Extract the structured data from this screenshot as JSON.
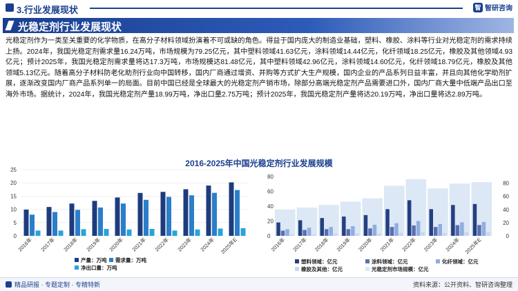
{
  "header": {
    "section_title": "3.行业发展现状",
    "logo_text": "智研咨询"
  },
  "banner": {
    "title": "光稳定剂行业发展现状"
  },
  "body_text": "光稳定剂作为一类至关重要的化学物质，在高分子材料领域扮演着不可或缺的角色。得益于国内庞大的制造业基础，塑料、橡胶、涂料等行业对光稳定剂的需求持续上扬。2024年，我国光稳定剂需求量16.24万吨，市场规模为79.25亿元，其中塑料领域41.63亿元，涂料领域14.44亿元，化纤领域18.25亿元，橡胶及其他领域4.93亿元；预计2025年，我国光稳定剂需求量将达17.3万吨，市场规模达81.48亿元，其中塑料领域42.96亿元，涂料领域14.60亿元，化纤领域18.79亿元，橡胶及其他领域5.13亿元。随着高分子材料防老化助剂行业向中国转移，国内厂商通过增资、并购等方式扩大生产规模，国内企业的产品系列日益丰富，并且向其他化学助剂扩展，逐渐改变国内厂商产品系列单一的局面。目前中国已经是全球最大的光稳定剂产销市场，除部分高端光稳定剂产品需要进口外，国内厂商大量中低端产品出口至海外市场。据统计，2024年，我国光稳定剂产量18.99万吨，净出口量2.75万吨；预计2025年，我国光稳定剂产量将达20.19万吨，净出口量将达2.89万吨。",
  "chart_title": "2016-2025年中国光稳定剂行业发展规模",
  "footer": {
    "left": "精品研报 · 专题定制 · 专精特新",
    "right": "资料来源：公开资料、智研咨询整理"
  },
  "chart_data": [
    {
      "type": "bar",
      "title": "",
      "categories": [
        "2016年",
        "2017年",
        "2018年",
        "2019年",
        "2020年",
        "2021年",
        "2022年",
        "2023年",
        "2024年",
        "2025年E"
      ],
      "ylim": [
        0,
        25
      ],
      "yticks": [
        0,
        5,
        10,
        15,
        20,
        25
      ],
      "series": [
        {
          "name": "产量：万吨",
          "color": "#1e3c7c",
          "values": [
            9.9,
            10.9,
            12.2,
            13.2,
            14.5,
            16.2,
            16.6,
            17.6,
            18.99,
            20.19
          ]
        },
        {
          "name": "需求量：万吨",
          "color": "#2b7ec9",
          "values": [
            8.0,
            9.0,
            9.8,
            10.7,
            12.2,
            13.6,
            14.7,
            15.3,
            16.24,
            17.3
          ]
        },
        {
          "name": "净出口量：万吨",
          "color": "#29a3d8",
          "values": [
            2.0,
            2.0,
            2.5,
            2.6,
            2.4,
            2.6,
            2.0,
            2.4,
            2.75,
            2.89
          ]
        }
      ],
      "legend_position": "bottom"
    },
    {
      "type": "bar",
      "title": "",
      "categories": [
        "2016年",
        "2017年",
        "2018年",
        "2019年",
        "2020年",
        "2021年",
        "2022年",
        "2023年",
        "2024年",
        "2025年E"
      ],
      "ylim": [
        0,
        80
      ],
      "yticks": [
        0,
        20,
        40,
        60,
        80
      ],
      "y2lim": [
        0,
        90
      ],
      "y2ticks": [
        0,
        20,
        40,
        60,
        80
      ],
      "series": [
        {
          "name": "塑料领域：亿元",
          "color": "#24407f",
          "values": [
            18,
            21,
            24,
            26,
            28,
            36,
            48,
            36,
            41.63,
            42.96
          ]
        },
        {
          "name": "涂料领域：亿元",
          "color": "#5a6fb0",
          "values": [
            7,
            8,
            9,
            9,
            10,
            12,
            14,
            12,
            14.44,
            14.6
          ]
        },
        {
          "name": "化纤领域：亿元",
          "color": "#8faee0",
          "values": [
            9,
            11,
            12,
            13,
            15,
            17,
            20,
            16,
            18.25,
            18.79
          ]
        },
        {
          "name": "橡胶及其他：亿元",
          "color": "#c9d6ef",
          "values": [
            2,
            2,
            3,
            3,
            3,
            4,
            5,
            4,
            4.93,
            5.13
          ]
        }
      ],
      "background_series": {
        "name": "光稳定剂市场规模：亿元",
        "color": "#dde8f6",
        "values": [
          40,
          43,
          47,
          52,
          57,
          76,
          86,
          72,
          79.25,
          81.48
        ]
      },
      "legend_position": "bottom"
    }
  ]
}
